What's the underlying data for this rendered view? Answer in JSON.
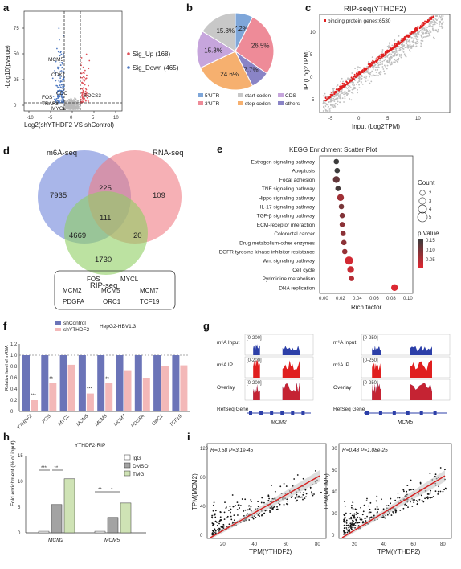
{
  "panels": {
    "a": "a",
    "b": "b",
    "c": "c",
    "d": "d",
    "e": "e",
    "f": "f",
    "g": "g",
    "h": "h",
    "i": "i"
  },
  "volcano": {
    "xlabel": "Log2(shYTHDF2 VS shControl)",
    "ylabel": "-Log10(pvalue)",
    "xticks": [
      "-10",
      "-5",
      "0",
      "5",
      "10"
    ],
    "yticks": [
      "0",
      "25",
      "50",
      "75"
    ],
    "legend_up": "Sig_Up (168)",
    "legend_down": "Sig_Down (465)",
    "labels": [
      "MCM5",
      "CDK1",
      "CDC",
      "SOCS3",
      "FOS",
      "TRAF3",
      "MYCL"
    ],
    "colors": {
      "up": "#e0525a",
      "down": "#4f79c0",
      "ns": "#b9b9b9"
    }
  },
  "pie": {
    "slices": [
      {
        "label": "7.2%",
        "value": 7.2,
        "color": "#7ea6d9",
        "cat": "5'UTR"
      },
      {
        "label": "26.5%",
        "value": 26.5,
        "color": "#ee8b98",
        "cat": "3'UTR"
      },
      {
        "label": "7.7%",
        "value": 7.7,
        "color": "#8a84c6",
        "cat": "others"
      },
      {
        "label": "24.6%",
        "value": 24.6,
        "color": "#f6b06f",
        "cat": "stop codon"
      },
      {
        "label": "15.3%",
        "value": 15.3,
        "color": "#c6a5dc",
        "cat": "CDS"
      },
      {
        "label": "15.8%",
        "value": 15.8,
        "color": "#c8c8c8",
        "cat": "start codon"
      }
    ],
    "legend": [
      "5'UTR",
      "start codon",
      "CDS",
      "3'UTR",
      "stop codon",
      "others"
    ]
  },
  "ripscatter": {
    "title": "RIP-seq(YTHDF2)",
    "legend": "binding protein genes:6530",
    "xlabel": "Input (Log2TPM)",
    "ylabel": "IP (Log2TPM)",
    "xticks": [
      "-5",
      "0",
      "5",
      "10"
    ],
    "yticks": [
      "-5",
      "0",
      "5",
      "10"
    ]
  },
  "venn": {
    "labels": {
      "m6a": "m6A-seq",
      "rna": "RNA-seq",
      "rip": "RIP-seq"
    },
    "counts": [
      "7935",
      "225",
      "109",
      "111",
      "4669",
      "20",
      "1730"
    ],
    "genes": [
      "FOS",
      "MYCL",
      "MCM2",
      "MCM5",
      "MCM7",
      "PDGFA",
      "ORC1",
      "TCF19"
    ]
  },
  "kegg": {
    "title": "KEGG Enrichment Scatter Plot",
    "xlabel": "Rich factor",
    "xticks": [
      "0.00",
      "0.02",
      "0.04",
      "0.06",
      "0.08",
      "0.10"
    ],
    "count_title": "Count",
    "count_ticks": [
      "2",
      "3",
      "4",
      "5"
    ],
    "p_title": "p Value",
    "p_ticks": [
      "0.15",
      "0.10",
      "0.05"
    ],
    "rows": [
      {
        "name": "Estrogen signaling pathway",
        "rf": 0.015,
        "count": 2,
        "p": 0.17
      },
      {
        "name": "Apoptosis",
        "rf": 0.016,
        "count": 2,
        "p": 0.17
      },
      {
        "name": "Focal adhesion",
        "rf": 0.015,
        "count": 3,
        "p": 0.13
      },
      {
        "name": "TNF signaling pathway",
        "rf": 0.017,
        "count": 2,
        "p": 0.16
      },
      {
        "name": "Hippo signaling pathway",
        "rf": 0.02,
        "count": 3,
        "p": 0.07
      },
      {
        "name": "IL-17 signaling pathway",
        "rf": 0.021,
        "count": 2,
        "p": 0.11
      },
      {
        "name": "TGF-β signaling pathway",
        "rf": 0.022,
        "count": 2,
        "p": 0.1
      },
      {
        "name": "ECM-receptor interaction",
        "rf": 0.022,
        "count": 2,
        "p": 0.09
      },
      {
        "name": "Colorectal cancer",
        "rf": 0.023,
        "count": 2,
        "p": 0.09
      },
      {
        "name": "Drug metabolism-other enzymes",
        "rf": 0.024,
        "count": 2,
        "p": 0.09
      },
      {
        "name": "EGFR tyrosine kinase inhibitor resistance",
        "rf": 0.025,
        "count": 2,
        "p": 0.08
      },
      {
        "name": "Wnt signaling pathway",
        "rf": 0.03,
        "count": 4,
        "p": 0.02
      },
      {
        "name": "Cell cycle",
        "rf": 0.032,
        "count": 3,
        "p": 0.03
      },
      {
        "name": "Pyrimidine metabolism",
        "rf": 0.033,
        "count": 2,
        "p": 0.05
      },
      {
        "name": "DNA replication",
        "rf": 0.084,
        "count": 3,
        "p": 0.01
      }
    ]
  },
  "barf": {
    "title": "HepG2-HBV1.3",
    "ylabel": "Relative level of mRNA",
    "legend": [
      "shControl",
      "shYTHDF2"
    ],
    "categories": [
      "YTHDF2",
      "FOS",
      "MYCL",
      "MCM5",
      "MCM5",
      "MCM7",
      "PDGFA",
      "ORC1",
      "TCF19"
    ],
    "ctrl": [
      1,
      1,
      1,
      1,
      1,
      1,
      1,
      1,
      1
    ],
    "sh": [
      0.2,
      0.5,
      0.83,
      0.32,
      0.5,
      0.72,
      0.6,
      0.8,
      0.82
    ],
    "stars": [
      "***",
      "**",
      "",
      "***",
      "**",
      "",
      "",
      "",
      ""
    ],
    "yticks": [
      "0",
      "0.2",
      "0.4",
      "0.6",
      "0.8",
      "1.0",
      "1.2"
    ]
  },
  "tracks": {
    "rows": [
      "m⁶A Input",
      "m⁶A IP",
      "Overlay",
      "RefSeq Gene"
    ],
    "scale_mcm2": "[0-200]",
    "scale_mcm5": "[0-250]",
    "gene1": "MCM2",
    "gene2": "MCM5"
  },
  "barh": {
    "title": "YTHDF2-RIP",
    "ylabel": "Fold enrichment (% of input)",
    "legend": [
      "IgG",
      "DMSO",
      "TMG"
    ],
    "groups": [
      "MCM2",
      "MCM5"
    ],
    "values": [
      [
        0.3,
        5.5,
        10.5
      ],
      [
        0.3,
        3,
        5.8
      ]
    ],
    "yticks": [
      "0",
      "5",
      "10",
      "15"
    ],
    "sig": [
      "***",
      "**",
      "**",
      "*"
    ],
    "colors": [
      "#ffffff",
      "#a3a3a3",
      "#cfe3b5"
    ]
  },
  "corr": [
    {
      "stat": "R=0.58 P=3.1e-45",
      "ylabel": "TPM(MCM2)",
      "xlabel": "TPM(YTHDF2)",
      "xticks": [
        "20",
        "40",
        "60",
        "80"
      ],
      "yticks": [
        "0",
        "40",
        "80",
        "120"
      ]
    },
    {
      "stat": "R=0.48 P=1.08e-25",
      "ylabel": "TPM(MCM5)",
      "xlabel": "TPM(YTHDF2)",
      "xticks": [
        "20",
        "40",
        "60",
        "80"
      ],
      "yticks": [
        "0",
        "20",
        "40",
        "60",
        "80"
      ]
    }
  ]
}
